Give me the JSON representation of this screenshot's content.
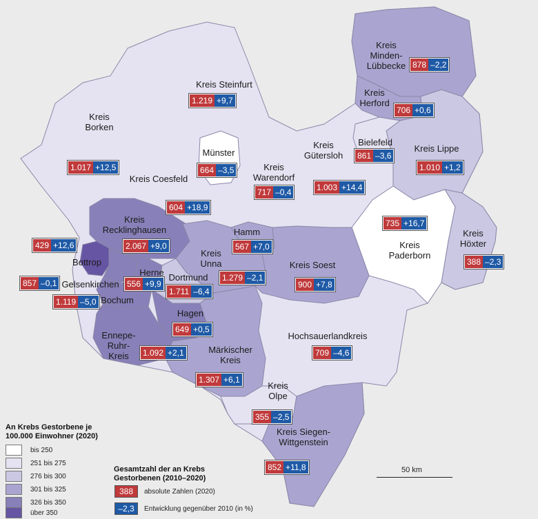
{
  "colors": {
    "bis_250": "#ffffff",
    "251_275": "#e5e3f1",
    "276_300": "#cbc8e3",
    "301_325": "#aaa5d0",
    "326_350": "#8880b8",
    "ueber_350": "#6655a2",
    "absolute": "#c0393b",
    "change": "#1f5aa6"
  },
  "districts": [
    {
      "name": "Kreis Steinfurt",
      "abs": "1.219",
      "chg": "+9,7"
    },
    {
      "name": "Kreis Minden-Lübbecke",
      "abs": "878",
      "chg": "–2,2"
    },
    {
      "name": "Kreis Herford",
      "abs": "706",
      "chg": "+0,6"
    },
    {
      "name": "Kreis Borken",
      "abs": "1.017",
      "chg": "+12,5"
    },
    {
      "name": "Münster",
      "abs": "664",
      "chg": "–3,5"
    },
    {
      "name": "Kreis Gütersloh",
      "abs": "1.003",
      "chg": "+14,4"
    },
    {
      "name": "Bielefeld",
      "abs": "861",
      "chg": "–3,6"
    },
    {
      "name": "Kreis Lippe",
      "abs": "1.010",
      "chg": "+1,2"
    },
    {
      "name": "Kreis Warendorf",
      "abs": "717",
      "chg": "–0,4"
    },
    {
      "name": "Kreis Coesfeld",
      "abs": "604",
      "chg": "+18,9"
    },
    {
      "name": "Kreis Recklinghausen",
      "abs": "2.067",
      "chg": "+9,0"
    },
    {
      "name": "Bottrop",
      "abs": "429",
      "chg": "+12,6"
    },
    {
      "name": "Hamm",
      "abs": "567",
      "chg": "+7,0"
    },
    {
      "name": "Kreis Paderborn",
      "abs": "735",
      "chg": "+16,7"
    },
    {
      "name": "Kreis Höxter",
      "abs": "388",
      "chg": "–2,3"
    },
    {
      "name": "Gelsenkirchen",
      "abs": "857",
      "chg": "–0,1"
    },
    {
      "name": "Herne",
      "abs": "556",
      "chg": "+9,9"
    },
    {
      "name": "Kreis Unna",
      "abs": "1.279",
      "chg": "–2,1"
    },
    {
      "name": "Kreis Soest",
      "abs": "900",
      "chg": "+7,8"
    },
    {
      "name": "Dortmund",
      "abs": "1.711",
      "chg": "–6,4"
    },
    {
      "name": "Bochum",
      "abs": "1.119",
      "chg": "–5,0"
    },
    {
      "name": "Hagen",
      "abs": "649",
      "chg": "+0,5"
    },
    {
      "name": "Ennepe-Ruhr-Kreis",
      "abs": "1.092",
      "chg": "+2,1"
    },
    {
      "name": "Hochsauerlandkreis",
      "abs": "709",
      "chg": "–4,6"
    },
    {
      "name": "Märkischer Kreis",
      "abs": "1.307",
      "chg": "+6,1"
    },
    {
      "name": "Kreis Olpe",
      "abs": "355",
      "chg": "–2,5"
    },
    {
      "name": "Kreis Siegen-Wittgenstein",
      "abs": "852",
      "chg": "+11,8"
    }
  ],
  "labels": {
    "steinfurt": "Kreis Steinfurt",
    "minden": [
      "Kreis",
      "Minden-",
      "Lübbecke"
    ],
    "herford": [
      "Kreis",
      "Herford"
    ],
    "borken": [
      "Kreis",
      "Borken"
    ],
    "muenster": "Münster",
    "guetersloh": [
      "Kreis",
      "Gütersloh"
    ],
    "bielefeld": "Bielefeld",
    "lippe": "Kreis Lippe",
    "warendorf": [
      "Kreis",
      "Warendorf"
    ],
    "coesfeld": "Kreis Coesfeld",
    "recklinghausen": [
      "Kreis",
      "Recklinghausen"
    ],
    "bottrop": "Bottrop",
    "hamm": "Hamm",
    "paderborn": [
      "Kreis",
      "Paderborn"
    ],
    "hoexter": [
      "Kreis",
      "Höxter"
    ],
    "gelsenkirchen": "Gelsenkirchen",
    "herne": "Herne",
    "unna": [
      "Kreis",
      "Unna"
    ],
    "soest": "Kreis Soest",
    "dortmund": "Dortmund",
    "bochum": "Bochum",
    "hagen": "Hagen",
    "ennepe": [
      "Ennepe-",
      "Ruhr-",
      "Kreis"
    ],
    "hochsauerland": "Hochsauerlandkreis",
    "maerkisch": [
      "Märkischer",
      "Kreis"
    ],
    "olpe": [
      "Kreis",
      "Olpe"
    ],
    "siegen": [
      "Kreis Siegen-",
      "Wittgenstein"
    ]
  },
  "legend": {
    "title": [
      "An Krebs Gestorbene je",
      "100.000 Einwohner (2020)"
    ],
    "classes": [
      "bis 250",
      "251 bis 275",
      "276 bis 300",
      "301 bis 325",
      "326 bis 350",
      "über 350"
    ]
  },
  "legend2": {
    "title": [
      "Gesamtzahl der an Krebs",
      "Gestorbenen (2010–2020)"
    ],
    "abs_sample": "388",
    "abs_text": "absolute Zahlen (2020)",
    "chg_sample": "–2,3",
    "chg_text": "Entwicklung gegenüber 2010 (in %)"
  },
  "scale": "50 km"
}
